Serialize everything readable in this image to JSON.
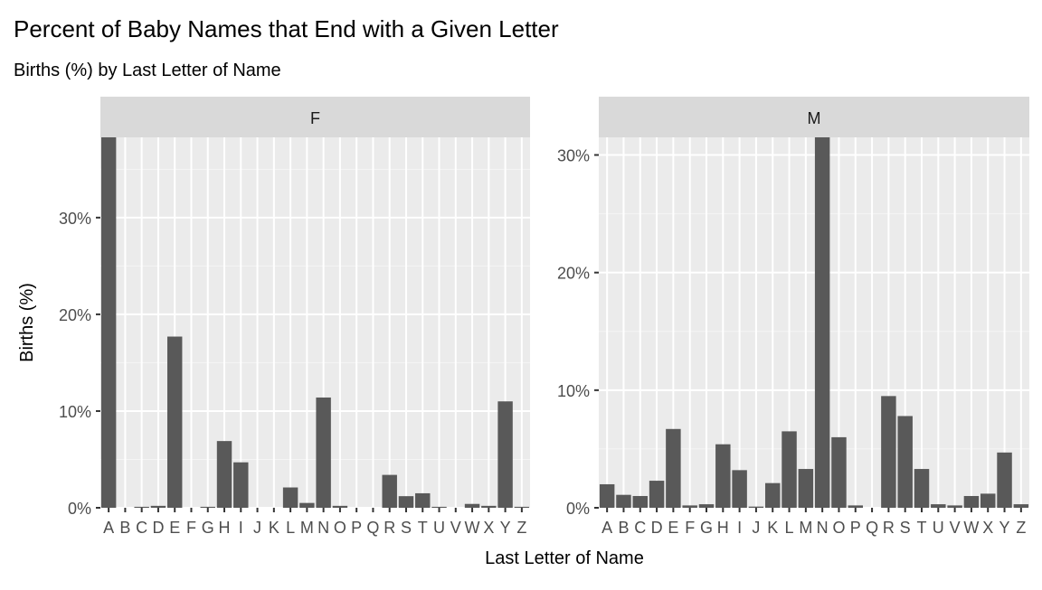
{
  "chart_data": {
    "type": "bar",
    "title": "Percent of Baby Names that End with a Given Letter",
    "subtitle": "Births (%) by Last Letter of Name",
    "xlabel": "Last Letter of Name",
    "ylabel": "Births (%)",
    "grid": true,
    "colors": {
      "bar": "#595959",
      "panel_bg": "#ebebeb",
      "strip_bg": "#d9d9d9",
      "grid_major": "#ffffff",
      "tick_text": "#4d4d4d",
      "text": "#000000"
    },
    "categories": [
      "A",
      "B",
      "C",
      "D",
      "E",
      "F",
      "G",
      "H",
      "I",
      "J",
      "K",
      "L",
      "M",
      "N",
      "O",
      "P",
      "Q",
      "R",
      "S",
      "T",
      "U",
      "V",
      "W",
      "X",
      "Y",
      "Z"
    ],
    "panels": [
      {
        "label": "F",
        "ylim": [
          0,
          38.3
        ],
        "yticks": [
          0,
          10,
          20,
          30
        ],
        "ytick_labels": [
          "0%",
          "10%",
          "20%",
          "30%"
        ],
        "values": [
          38.3,
          0,
          0.1,
          0.2,
          17.7,
          0,
          0.1,
          6.9,
          4.7,
          0,
          0,
          2.1,
          0.5,
          11.4,
          0.2,
          0,
          0,
          3.4,
          1.2,
          1.5,
          0.1,
          0,
          0.4,
          0.2,
          11.0,
          0.1
        ]
      },
      {
        "label": "M",
        "ylim": [
          0,
          31.5
        ],
        "yticks": [
          0,
          10,
          20,
          30
        ],
        "ytick_labels": [
          "0%",
          "10%",
          "20%",
          "30%"
        ],
        "values": [
          2.0,
          1.1,
          1.0,
          2.3,
          6.7,
          0.2,
          0.3,
          5.4,
          3.2,
          0.1,
          2.1,
          6.5,
          3.3,
          31.5,
          6.0,
          0.2,
          0,
          9.5,
          7.8,
          3.3,
          0.3,
          0.2,
          1.0,
          1.2,
          4.7,
          0.3
        ]
      }
    ]
  }
}
